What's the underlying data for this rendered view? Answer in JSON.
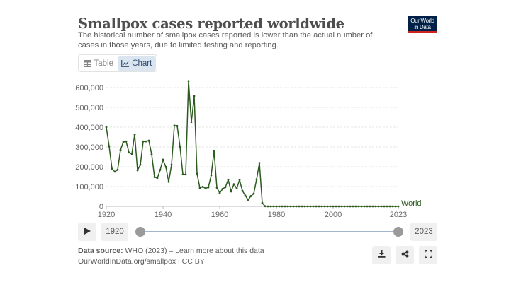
{
  "header": {
    "title": "Smallpox cases reported worldwide",
    "subtitle_pre": "The historical number of ",
    "subtitle_term": "smallpox",
    "subtitle_post": " cases reported is lower than the actual number of cases in those years, due to limited testing and reporting.",
    "logo_line1": "Our World",
    "logo_line2": "in Data"
  },
  "tabs": [
    {
      "label": "Table",
      "icon": "table-icon",
      "active": false
    },
    {
      "label": "Chart",
      "icon": "line-chart-icon",
      "active": true
    }
  ],
  "timeline": {
    "play_icon": "play-icon",
    "start_year": "1920",
    "end_year": "2023"
  },
  "footer": {
    "source_label": "Data source:",
    "source_value": " WHO (2023) – ",
    "learn_more": "Learn more about this data",
    "credit": "OurWorldInData.org/smallpox | CC BY",
    "actions": [
      "download-icon",
      "share-icon",
      "fullscreen-icon"
    ]
  },
  "colors": {
    "series": "#2c5a1f",
    "grid": "#dddddd",
    "active_tab_bg": "#dbe5f0",
    "logo_bg": "#002147",
    "logo_accent": "#ce261e"
  },
  "chart_data": {
    "type": "line",
    "title": "Smallpox cases reported worldwide",
    "xlabel": "",
    "ylabel": "",
    "ylim": [
      0,
      600000
    ],
    "xlim": [
      1920,
      2023
    ],
    "yticks": [
      "0",
      "100,000",
      "200,000",
      "300,000",
      "400,000",
      "500,000",
      "600,000"
    ],
    "xticks": [
      "1920",
      "1940",
      "1960",
      "1980",
      "2000",
      "2023"
    ],
    "grid": true,
    "legend_position": "end-of-line label",
    "series": [
      {
        "name": "World",
        "x": [
          1920,
          1921,
          1922,
          1923,
          1924,
          1925,
          1926,
          1927,
          1928,
          1929,
          1930,
          1931,
          1932,
          1933,
          1934,
          1935,
          1936,
          1937,
          1938,
          1939,
          1940,
          1941,
          1942,
          1943,
          1944,
          1945,
          1946,
          1947,
          1948,
          1949,
          1950,
          1951,
          1952,
          1953,
          1954,
          1955,
          1956,
          1957,
          1958,
          1959,
          1960,
          1961,
          1962,
          1963,
          1964,
          1965,
          1966,
          1967,
          1968,
          1969,
          1970,
          1971,
          1972,
          1973,
          1974,
          1975,
          1976,
          1977,
          1978,
          1979,
          1980,
          1981,
          1982,
          1983,
          1984,
          1985,
          1986,
          1987,
          1988,
          1989,
          1990,
          1991,
          1992,
          1993,
          1994,
          1995,
          1996,
          1997,
          1998,
          1999,
          2000,
          2001,
          2002,
          2003,
          2004,
          2005,
          2006,
          2007,
          2008,
          2009,
          2010,
          2011,
          2012,
          2013,
          2014,
          2015,
          2016,
          2017,
          2018,
          2019,
          2020,
          2021,
          2022,
          2023
        ],
        "values": [
          400000,
          303000,
          190000,
          175000,
          185000,
          285000,
          325000,
          328000,
          272000,
          265000,
          362000,
          182000,
          210000,
          328000,
          328000,
          332000,
          263000,
          148000,
          143000,
          184000,
          236000,
          199000,
          124000,
          210000,
          408000,
          406000,
          301000,
          162000,
          161000,
          633000,
          426000,
          557000,
          165000,
          93000,
          99000,
          91000,
          96000,
          157000,
          281000,
          94000,
          67000,
          88000,
          97000,
          135000,
          75000,
          112000,
          91000,
          133000,
          79000,
          55000,
          33000,
          52000,
          64000,
          136000,
          219000,
          17000,
          1000,
          0,
          0,
          0,
          0,
          0,
          0,
          0,
          0,
          0,
          0,
          0,
          0,
          0,
          0,
          0,
          0,
          0,
          0,
          0,
          0,
          0,
          0,
          0,
          0,
          0,
          0,
          0,
          0,
          0,
          0,
          0,
          0,
          0,
          0,
          0,
          0,
          0,
          0,
          0,
          0,
          0,
          0,
          0,
          0,
          0,
          0,
          0
        ]
      }
    ]
  }
}
